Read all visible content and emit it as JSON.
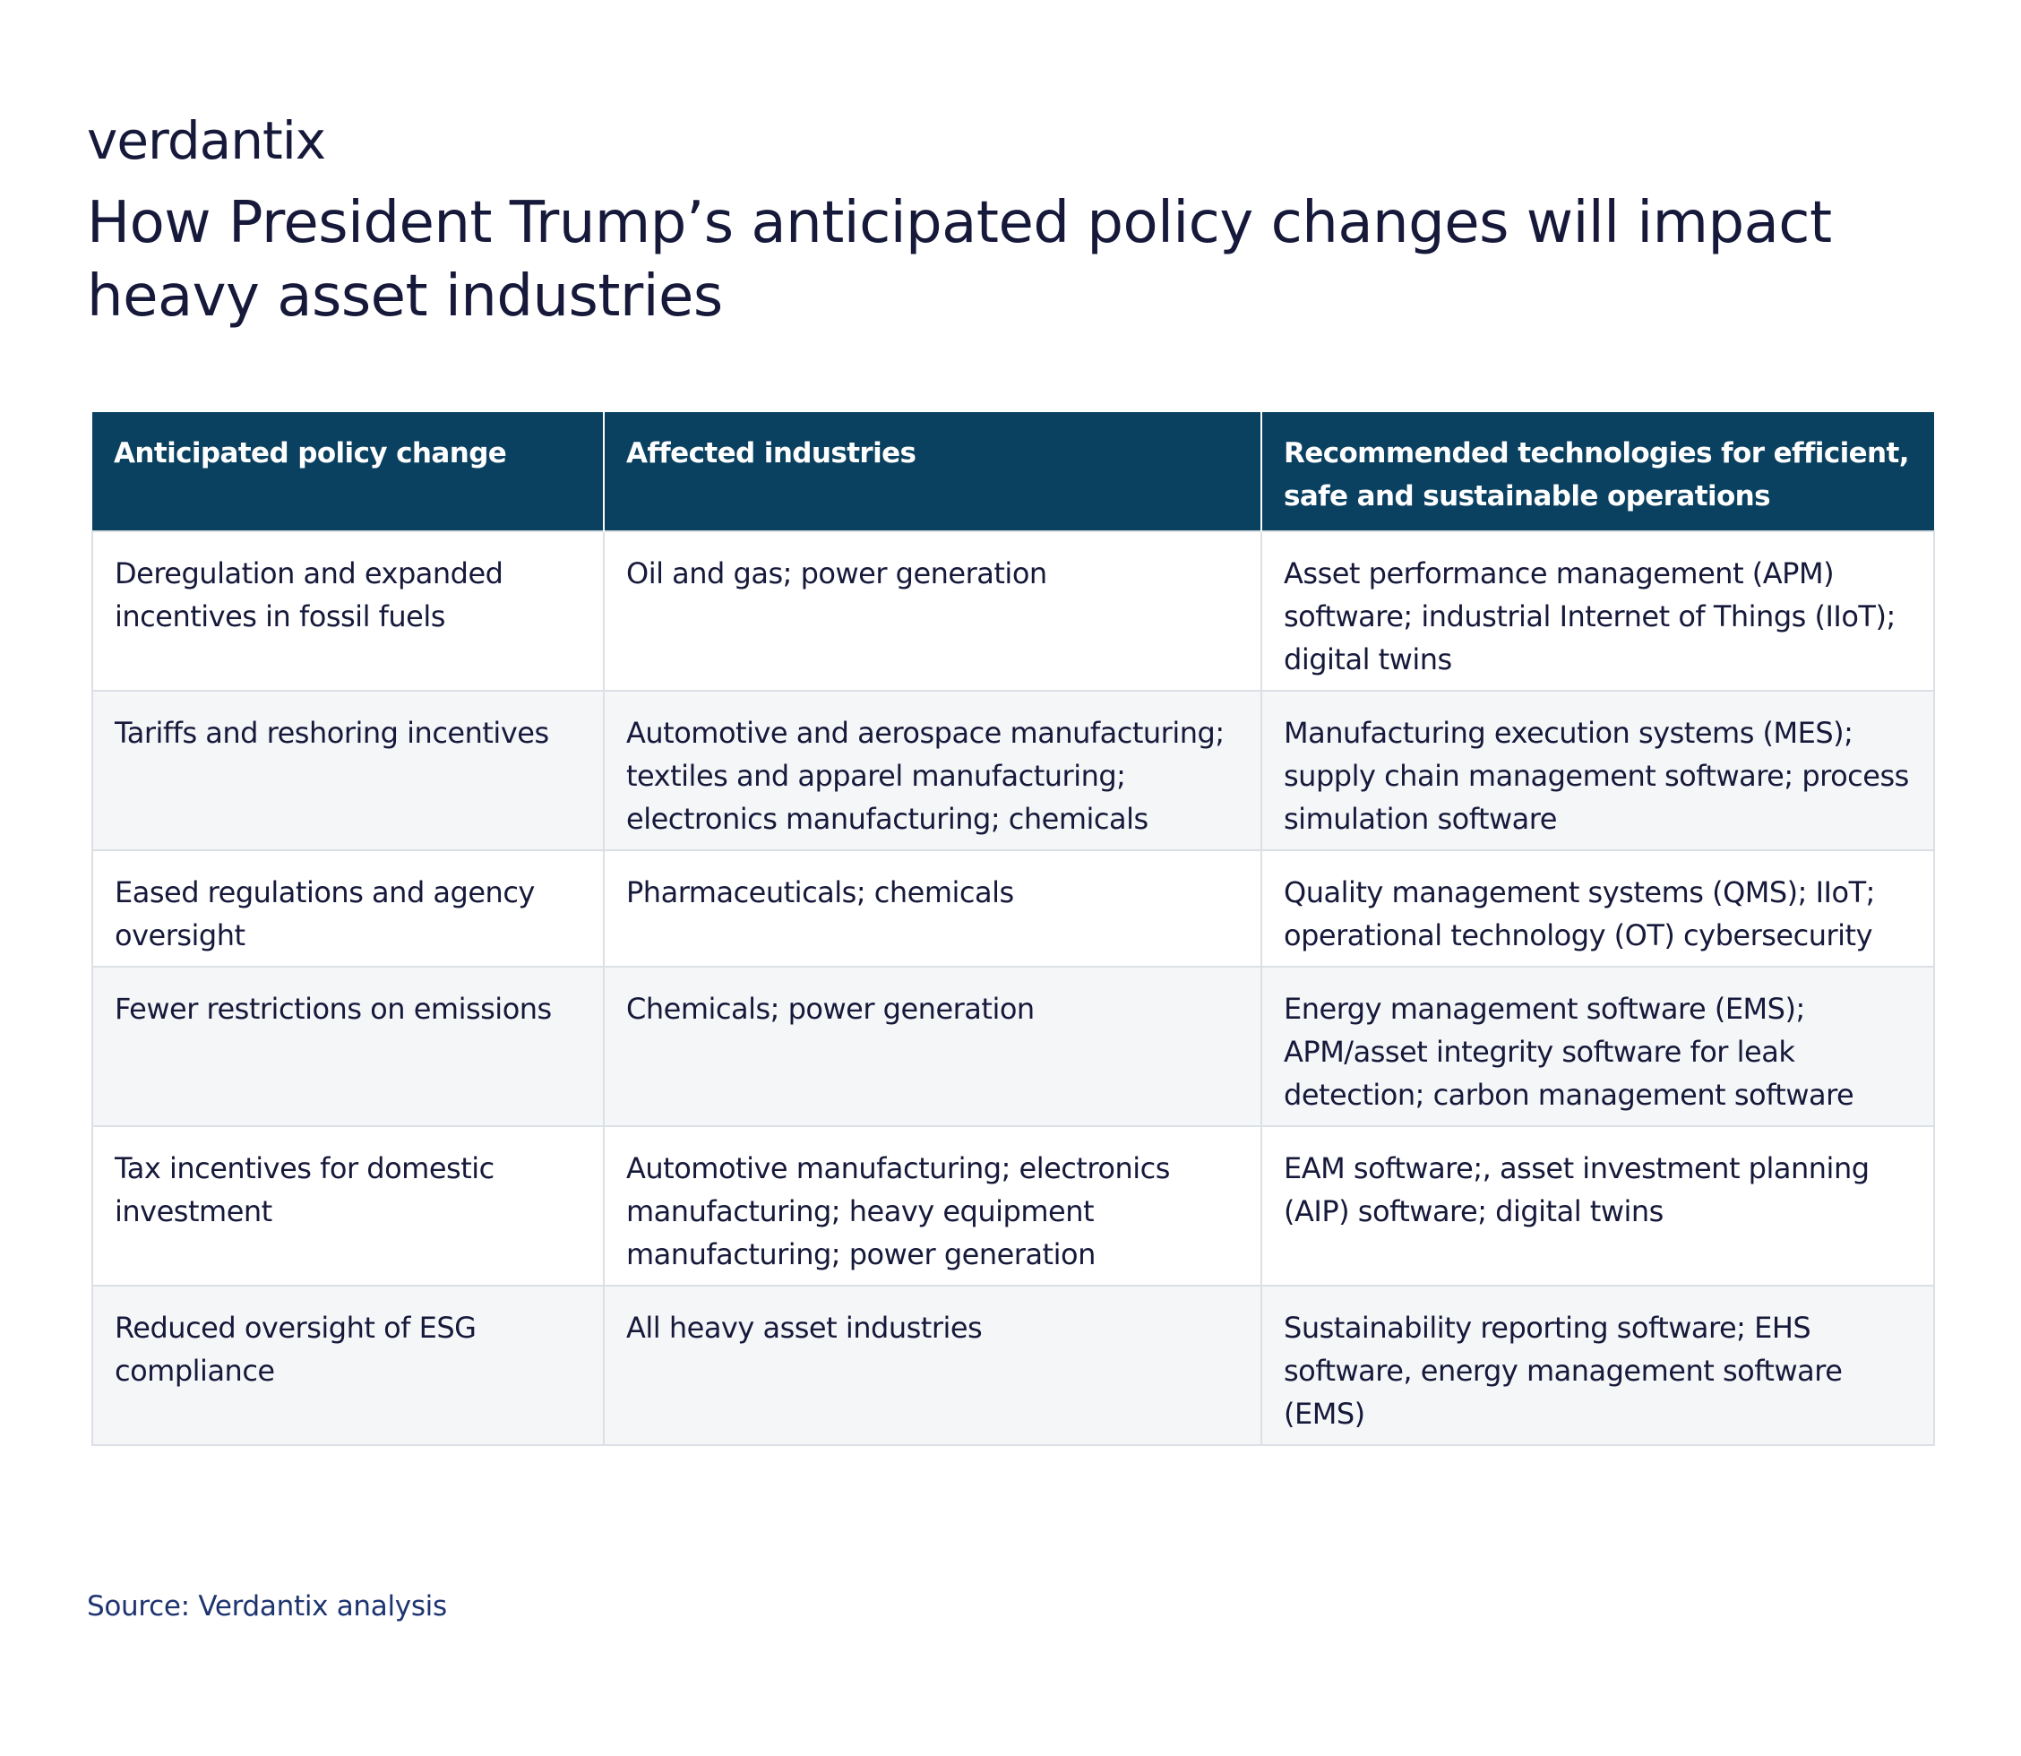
{
  "brand": {
    "logo_text": "verdantix"
  },
  "title": "How President Trump’s anticipated policy changes will impact heavy asset industries",
  "table": {
    "headers": [
      "Anticipated policy change",
      "Affected industries",
      "Recommended technologies for efficient, safe and sustainable operations"
    ],
    "rows": [
      [
        "Deregulation and expanded incentives in fossil fuels",
        "Oil and gas; power generation",
        "Asset performance management (APM) software; industrial Internet of Things (IIoT); digital twins"
      ],
      [
        "Tariffs and reshoring incentives",
        "Automotive and aerospace manufacturing; textiles and apparel manufacturing; electronics manufacturing; chemicals",
        "Manufacturing execution systems (MES); supply chain management software; process simulation software"
      ],
      [
        "Eased regulations and agency oversight",
        "Pharmaceuticals; chemicals",
        "Quality management systems (QMS); IIoT; operational technology (OT) cybersecurity"
      ],
      [
        "Fewer restrictions on emissions",
        "Chemicals; power generation",
        "Energy management software (EMS); APM/asset integrity software for leak detection; carbon management software"
      ],
      [
        "Tax incentives for domestic investment",
        "Automotive manufacturing; electronics manufacturing; heavy equipment manufacturing; power generation",
        "EAM software;, asset investment planning (AIP) software; digital twins"
      ],
      [
        "Reduced oversight of ESG compliance",
        "All heavy asset industries",
        "Sustainability reporting software; EHS software, energy management software (EMS)"
      ]
    ]
  },
  "source": "Source: Verdantix analysis"
}
